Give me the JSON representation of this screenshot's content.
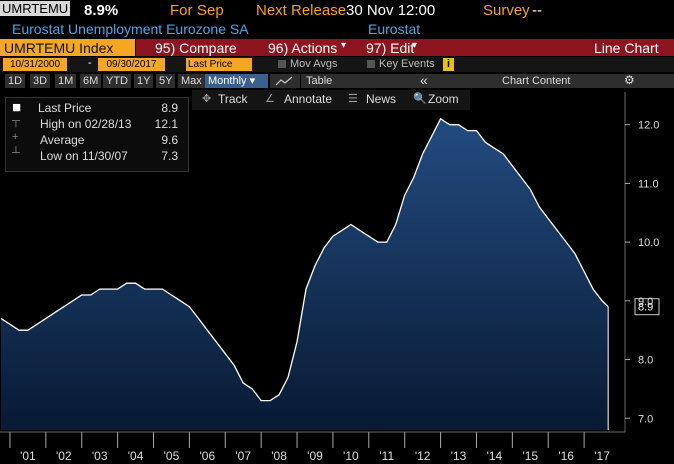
{
  "header": {
    "ticker": "UMRTEMU",
    "last": "8.9%",
    "for_label": "For",
    "period": "Sep",
    "next_release_label": "Next Release",
    "next_release": "30 Nov 12:00",
    "survey_label": "Survey",
    "survey": "--",
    "description": "Eurostat Unemployment Eurozone SA",
    "source": "Eurostat"
  },
  "menu": {
    "security": "UMRTEMU Index",
    "compare": "95) Compare",
    "actions": "96) Actions",
    "edit": "97) Edit",
    "view": "Line Chart"
  },
  "controls": {
    "start": "10/31/2000",
    "separator": "-",
    "end": "09/30/2017",
    "field": "Last Price",
    "mov_avgs": "Mov Avgs",
    "key_events": "Key Events",
    "info": "i"
  },
  "ranges": {
    "buttons": [
      "1D",
      "3D",
      "1M",
      "6M",
      "YTD",
      "1Y",
      "5Y",
      "Max"
    ],
    "period": "Monthly",
    "table": "Table",
    "chart_content": "Chart Content"
  },
  "tools": [
    "Track",
    "Annotate",
    "News",
    "Zoom"
  ],
  "legend": [
    {
      "label": "Last Price",
      "value": "8.9"
    },
    {
      "label": "High on 02/28/13",
      "value": "12.1"
    },
    {
      "label": "Average",
      "value": "9.6"
    },
    {
      "label": "Low on 11/30/07",
      "value": "7.3"
    }
  ],
  "chart_data": {
    "type": "area",
    "color": "#ffffff",
    "fill": "#1d4170",
    "x": [
      2000.75,
      2001,
      2001.25,
      2001.5,
      2001.75,
      2002,
      2002.25,
      2002.5,
      2002.75,
      2003,
      2003.25,
      2003.5,
      2003.75,
      2004,
      2004.25,
      2004.5,
      2004.75,
      2005,
      2005.25,
      2005.5,
      2005.75,
      2006,
      2006.25,
      2006.5,
      2006.75,
      2007,
      2007.25,
      2007.5,
      2007.75,
      2008,
      2008.25,
      2008.5,
      2008.75,
      2009,
      2009.25,
      2009.5,
      2009.75,
      2010,
      2010.25,
      2010.5,
      2010.75,
      2011,
      2011.25,
      2011.5,
      2011.75,
      2012,
      2012.25,
      2012.5,
      2012.75,
      2013,
      2013.25,
      2013.5,
      2013.75,
      2014,
      2014.25,
      2014.5,
      2014.75,
      2015,
      2015.25,
      2015.5,
      2015.75,
      2016,
      2016.25,
      2016.5,
      2016.75,
      2017,
      2017.25,
      2017.5,
      2017.67
    ],
    "values": [
      8.7,
      8.6,
      8.5,
      8.5,
      8.6,
      8.7,
      8.8,
      8.9,
      9.0,
      9.1,
      9.1,
      9.2,
      9.2,
      9.2,
      9.3,
      9.3,
      9.2,
      9.2,
      9.2,
      9.1,
      9.0,
      8.9,
      8.7,
      8.5,
      8.3,
      8.1,
      7.9,
      7.6,
      7.5,
      7.3,
      7.3,
      7.4,
      7.7,
      8.3,
      9.2,
      9.6,
      9.9,
      10.1,
      10.2,
      10.3,
      10.2,
      10.1,
      10.0,
      10.0,
      10.3,
      10.8,
      11.1,
      11.5,
      11.8,
      12.1,
      12.0,
      12.0,
      11.9,
      11.9,
      11.7,
      11.6,
      11.5,
      11.3,
      11.1,
      10.9,
      10.6,
      10.4,
      10.2,
      10.0,
      9.8,
      9.5,
      9.2,
      9.0,
      8.9
    ],
    "xlim": [
      2000.75,
      2018.0
    ],
    "xticks": [
      {
        "value": 2001,
        "label": "'01"
      },
      {
        "value": 2002,
        "label": "'02"
      },
      {
        "value": 2003,
        "label": "'03"
      },
      {
        "value": 2004,
        "label": "'04"
      },
      {
        "value": 2005,
        "label": "'05"
      },
      {
        "value": 2006,
        "label": "'06"
      },
      {
        "value": 2007,
        "label": "'07"
      },
      {
        "value": 2008,
        "label": "'08"
      },
      {
        "value": 2009,
        "label": "'09"
      },
      {
        "value": 2010,
        "label": "'10"
      },
      {
        "value": 2011,
        "label": "'11"
      },
      {
        "value": 2012,
        "label": "'12"
      },
      {
        "value": 2013,
        "label": "'13"
      },
      {
        "value": 2014,
        "label": "'14"
      },
      {
        "value": 2015,
        "label": "'15"
      },
      {
        "value": 2016,
        "label": "'16"
      },
      {
        "value": 2017,
        "label": "'17"
      }
    ],
    "ylim": [
      6.8,
      12.25
    ],
    "yticks": [
      {
        "value": 7,
        "label": "7.0"
      },
      {
        "value": 8,
        "label": "8.0"
      },
      {
        "value": 9,
        "label": "9.0"
      },
      {
        "value": 10,
        "label": "10.0"
      },
      {
        "value": 11,
        "label": "11.0"
      },
      {
        "value": 12,
        "label": "12.0"
      }
    ]
  }
}
